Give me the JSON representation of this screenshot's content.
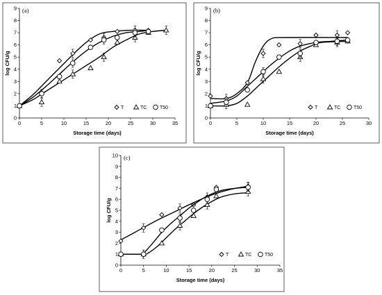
{
  "chart_data": [
    {
      "type": "scatter",
      "panel_label": "(a)",
      "xlabel": "Storage time (days)",
      "ylabel": "log CFU/g",
      "xlim": [
        0,
        35
      ],
      "ylim": [
        0,
        9
      ],
      "xticks": [
        "0",
        "5",
        "10",
        "15",
        "20",
        "25",
        "30",
        "35"
      ],
      "yticks": [
        "0",
        "1",
        "2",
        "3",
        "4",
        "5",
        "6",
        "7",
        "8",
        "9"
      ],
      "grid": false,
      "legend_position": "bottom-right",
      "series": [
        {
          "name": "T",
          "marker": "diamond",
          "points": [
            [
              0,
              1.0
            ],
            [
              5,
              2.0
            ],
            [
              9,
              4.7
            ],
            [
              12,
              5.3
            ],
            [
              16,
              6.4
            ],
            [
              19,
              6.6
            ],
            [
              22,
              7.1
            ],
            [
              26,
              7.2
            ],
            [
              29,
              7.2
            ]
          ],
          "fit": [
            [
              0,
              1.0
            ],
            [
              3,
              1.9
            ],
            [
              6,
              3.0
            ],
            [
              9,
              4.1
            ],
            [
              12,
              5.2
            ],
            [
              15,
              6.2
            ],
            [
              18,
              6.9
            ],
            [
              21,
              7.1
            ],
            [
              25,
              7.2
            ],
            [
              29,
              7.2
            ]
          ]
        },
        {
          "name": "TC",
          "marker": "triangle",
          "points": [
            [
              0,
              1.0
            ],
            [
              5,
              1.3
            ],
            [
              9,
              3.0
            ],
            [
              12,
              3.6
            ],
            [
              16,
              4.1
            ],
            [
              19,
              5.0
            ],
            [
              22,
              6.2
            ],
            [
              26,
              6.6
            ],
            [
              29,
              7.0
            ],
            [
              33,
              7.2
            ]
          ],
          "fit": [
            [
              0,
              1.0
            ],
            [
              3,
              1.5
            ],
            [
              6,
              2.2
            ],
            [
              9,
              2.9
            ],
            [
              12,
              3.6
            ],
            [
              15,
              4.3
            ],
            [
              18,
              5.0
            ],
            [
              21,
              5.8
            ],
            [
              24,
              6.4
            ],
            [
              27,
              6.9
            ],
            [
              30,
              7.1
            ],
            [
              33,
              7.2
            ]
          ]
        },
        {
          "name": "T50",
          "marker": "circle",
          "points": [
            [
              0,
              1.0
            ],
            [
              5,
              2.0
            ],
            [
              9,
              3.4
            ],
            [
              12,
              4.5
            ],
            [
              16,
              5.8
            ],
            [
              19,
              6.4
            ],
            [
              22,
              6.6
            ],
            [
              26,
              7.0
            ],
            [
              29,
              7.1
            ]
          ],
          "fit": [
            [
              0,
              1.0
            ],
            [
              3,
              1.7
            ],
            [
              6,
              2.6
            ],
            [
              9,
              3.6
            ],
            [
              12,
              4.6
            ],
            [
              15,
              5.5
            ],
            [
              18,
              6.2
            ],
            [
              21,
              6.7
            ],
            [
              24,
              7.0
            ],
            [
              27,
              7.1
            ],
            [
              29,
              7.2
            ]
          ]
        }
      ]
    },
    {
      "type": "scatter",
      "panel_label": "(b)",
      "xlabel": "Storage time (days)",
      "ylabel": "log CFU/g",
      "xlim": [
        0,
        30
      ],
      "ylim": [
        0,
        9
      ],
      "xticks": [
        "0",
        "5",
        "10",
        "15",
        "20",
        "25",
        "30"
      ],
      "yticks": [
        "0",
        "1",
        "2",
        "3",
        "4",
        "5",
        "6",
        "7",
        "8",
        "9"
      ],
      "grid": false,
      "legend_position": "bottom-right",
      "series": [
        {
          "name": "T",
          "marker": "diamond",
          "points": [
            [
              0,
              1.8
            ],
            [
              3,
              1.6
            ],
            [
              7,
              2.9
            ],
            [
              10,
              5.3
            ],
            [
              13,
              6.0
            ],
            [
              17,
              6.1
            ],
            [
              20,
              6.8
            ],
            [
              24,
              6.8
            ],
            [
              26,
              7.0
            ]
          ],
          "fit": [
            [
              0,
              1.6
            ],
            [
              3,
              1.6
            ],
            [
              5,
              2.0
            ],
            [
              7,
              2.9
            ],
            [
              8.5,
              4.6
            ],
            [
              10,
              5.9
            ],
            [
              11.5,
              6.5
            ],
            [
              14,
              6.6
            ],
            [
              26,
              6.6
            ]
          ]
        },
        {
          "name": "TC",
          "marker": "triangle",
          "points": [
            [
              0,
              1.0
            ],
            [
              3,
              1.1
            ],
            [
              7,
              1.1
            ],
            [
              10,
              3.2
            ],
            [
              13,
              3.8
            ],
            [
              17,
              5.0
            ],
            [
              20,
              6.0
            ],
            [
              24,
              6.2
            ],
            [
              26,
              6.3
            ]
          ],
          "fit": [
            [
              0,
              1.0
            ],
            [
              3,
              1.0
            ],
            [
              5,
              1.2
            ],
            [
              7,
              1.8
            ],
            [
              9,
              2.6
            ],
            [
              11,
              3.4
            ],
            [
              13,
              4.2
            ],
            [
              15,
              4.9
            ],
            [
              17,
              5.5
            ],
            [
              19,
              5.9
            ],
            [
              21,
              6.2
            ],
            [
              26,
              6.3
            ]
          ]
        },
        {
          "name": "T50",
          "marker": "circle",
          "points": [
            [
              0,
              1.0
            ],
            [
              3,
              1.3
            ],
            [
              7,
              2.3
            ],
            [
              10,
              3.8
            ],
            [
              13,
              5.0
            ],
            [
              17,
              5.3
            ],
            [
              20,
              6.2
            ],
            [
              24,
              6.3
            ],
            [
              26,
              6.4
            ]
          ],
          "fit": [
            [
              0,
              1.2
            ],
            [
              3,
              1.4
            ],
            [
              5,
              1.8
            ],
            [
              7,
              2.6
            ],
            [
              9,
              3.4
            ],
            [
              11,
              4.2
            ],
            [
              13,
              4.9
            ],
            [
              15,
              5.5
            ],
            [
              17,
              5.9
            ],
            [
              20,
              6.2
            ],
            [
              23,
              6.3
            ],
            [
              26,
              6.4
            ]
          ]
        }
      ]
    },
    {
      "type": "scatter",
      "panel_label": "(c)",
      "xlabel": "Storage time (days)",
      "ylabel": "log CFU/g",
      "xlim": [
        0,
        35
      ],
      "ylim": [
        0,
        10
      ],
      "xticks": [
        "0",
        "5",
        "10",
        "15",
        "20",
        "25",
        "30",
        "35"
      ],
      "yticks": [
        "0",
        "1",
        "2",
        "3",
        "4",
        "5",
        "6",
        "7",
        "8",
        "9",
        "10"
      ],
      "grid": false,
      "legend_position": "bottom-right",
      "series": [
        {
          "name": "T",
          "marker": "diamond",
          "points": [
            [
              0,
              2.2
            ],
            [
              5,
              3.4
            ],
            [
              9,
              4.6
            ],
            [
              13,
              5.2
            ],
            [
              16,
              5.5
            ],
            [
              19,
              6.2
            ],
            [
              21,
              7.1
            ],
            [
              28,
              7.2
            ]
          ],
          "fit": [
            [
              0,
              2.3
            ],
            [
              4,
              3.2
            ],
            [
              8,
              4.1
            ],
            [
              12,
              4.9
            ],
            [
              16,
              5.7
            ],
            [
              20,
              6.4
            ],
            [
              24,
              6.9
            ],
            [
              28,
              7.2
            ]
          ]
        },
        {
          "name": "TC",
          "marker": "triangle",
          "points": [
            [
              0,
              1.0
            ],
            [
              5,
              1.0
            ],
            [
              9,
              2.0
            ],
            [
              13,
              3.6
            ],
            [
              16,
              4.5
            ],
            [
              19,
              5.5
            ],
            [
              21,
              6.3
            ],
            [
              28,
              6.7
            ]
          ],
          "fit": [
            [
              0,
              1.0
            ],
            [
              5,
              1.0
            ],
            [
              6,
              1.1
            ],
            [
              8,
              1.7
            ],
            [
              10,
              2.5
            ],
            [
              12,
              3.3
            ],
            [
              14,
              4.0
            ],
            [
              16,
              4.7
            ],
            [
              18,
              5.3
            ],
            [
              20,
              5.8
            ],
            [
              22,
              6.2
            ],
            [
              25,
              6.5
            ],
            [
              28,
              6.6
            ]
          ]
        },
        {
          "name": "T50",
          "marker": "circle",
          "points": [
            [
              0,
              1.0
            ],
            [
              5,
              1.0
            ],
            [
              9,
              3.2
            ],
            [
              13,
              4.3
            ],
            [
              16,
              5.0
            ],
            [
              19,
              6.0
            ],
            [
              21,
              6.9
            ],
            [
              28,
              7.1
            ]
          ],
          "fit": [
            [
              0,
              1.0
            ],
            [
              4,
              1.0
            ],
            [
              5,
              1.1
            ],
            [
              7,
              2.0
            ],
            [
              9,
              3.0
            ],
            [
              11,
              3.8
            ],
            [
              13,
              4.5
            ],
            [
              15,
              5.2
            ],
            [
              17,
              5.8
            ],
            [
              19,
              6.3
            ],
            [
              22,
              6.8
            ],
            [
              25,
              7.0
            ],
            [
              28,
              7.1
            ]
          ]
        }
      ]
    }
  ]
}
